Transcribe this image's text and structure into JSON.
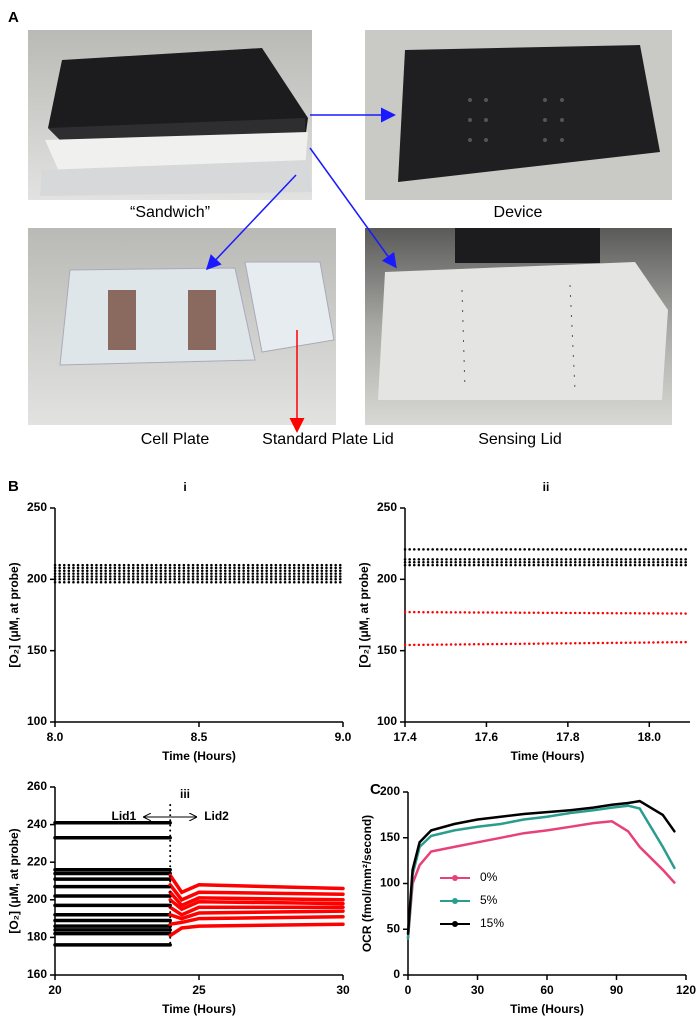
{
  "panels": {
    "a": "A",
    "b": "B",
    "c": "C"
  },
  "captions": [
    "“Sandwich”",
    "Device",
    "Cell Plate",
    "Standard Plate Lid",
    "Sensing Lid"
  ],
  "chart_data": [
    {
      "type": "line",
      "title": "i",
      "line_style": "dotted",
      "x_label": "Time (Hours)",
      "y_label": "[O₂] (μM, at probe)",
      "x": [
        8,
        9
      ],
      "series": [
        {
          "color": "#000000",
          "values": [
            198,
            198
          ]
        },
        {
          "color": "#000000",
          "values": [
            200,
            200
          ]
        },
        {
          "color": "#000000",
          "values": [
            202,
            202
          ]
        },
        {
          "color": "#000000",
          "values": [
            204,
            204
          ]
        },
        {
          "color": "#000000",
          "values": [
            206,
            206
          ]
        },
        {
          "color": "#000000",
          "values": [
            208,
            208
          ]
        },
        {
          "color": "#000000",
          "values": [
            210,
            210
          ]
        }
      ],
      "xlim": [
        8,
        9
      ],
      "xticks": [
        {
          "value": 8,
          "label": "8.0"
        },
        8.5,
        {
          "value": 9,
          "label": "9.0"
        }
      ],
      "ylim": [
        100,
        250
      ],
      "yticks": [
        100,
        150,
        200,
        250
      ]
    },
    {
      "type": "line",
      "title": "ii",
      "line_style": "dotted",
      "x_label": "Time (Hours)",
      "y_label": "[O₂] (μM, at probe)",
      "x": [
        17.4,
        18.1
      ],
      "series": [
        {
          "color": "#000000",
          "values": [
            221,
            221
          ]
        },
        {
          "color": "#000000",
          "values": [
            214,
            214
          ]
        },
        {
          "color": "#000000",
          "values": [
            212,
            212
          ]
        },
        {
          "color": "#000000",
          "values": [
            210,
            210
          ]
        },
        {
          "color": "#ff0000",
          "values": [
            177,
            176
          ]
        },
        {
          "color": "#ff0000",
          "values": [
            154,
            156
          ]
        }
      ],
      "xlim": [
        17.4,
        18.1
      ],
      "xticks": [
        17.4,
        17.6,
        17.8,
        {
          "value": 18,
          "label": "18.0"
        }
      ],
      "ylim": [
        100,
        250
      ],
      "yticks": [
        100,
        150,
        200,
        250
      ]
    },
    {
      "type": "line",
      "title": "iii",
      "line_style": "solid",
      "x_label": "Time (Hours)",
      "y_label": "[O₂] (μM, at probe)",
      "annotations": [
        {
          "text": "Lid1",
          "color": "#000000"
        },
        {
          "text": "Lid2",
          "color": "#ff0000"
        }
      ],
      "x": [
        20,
        24,
        24.4,
        25,
        30
      ],
      "series": [
        {
          "color": "#000000",
          "values": [
            241,
            241,
            null,
            null,
            null
          ]
        },
        {
          "color": "#000000",
          "values": [
            233,
            233,
            null,
            null,
            null
          ]
        },
        {
          "color": "#000000",
          "values": [
            216,
            216,
            null,
            null,
            null
          ]
        },
        {
          "color": "#000000",
          "values": [
            214,
            214,
            null,
            null,
            null
          ]
        },
        {
          "color": "#000000",
          "values": [
            211,
            211,
            null,
            null,
            null
          ]
        },
        {
          "color": "#000000",
          "values": [
            207,
            207,
            null,
            null,
            null
          ]
        },
        {
          "color": "#000000",
          "values": [
            202,
            202,
            null,
            null,
            null
          ]
        },
        {
          "color": "#000000",
          "values": [
            197,
            197,
            null,
            null,
            null
          ]
        },
        {
          "color": "#000000",
          "values": [
            192,
            192,
            null,
            null,
            null
          ]
        },
        {
          "color": "#000000",
          "values": [
            189,
            189,
            null,
            null,
            null
          ]
        },
        {
          "color": "#000000",
          "values": [
            186,
            186,
            null,
            null,
            null
          ]
        },
        {
          "color": "#000000",
          "values": [
            184,
            184,
            null,
            null,
            null
          ]
        },
        {
          "color": "#000000",
          "values": [
            182,
            182,
            null,
            null,
            null
          ]
        },
        {
          "color": "#000000",
          "values": [
            176,
            176,
            null,
            null,
            null
          ]
        },
        {
          "color": "#ff0000",
          "values": [
            null,
            213,
            204,
            208,
            206
          ]
        },
        {
          "color": "#ff0000",
          "values": [
            null,
            208,
            200,
            204,
            203
          ]
        },
        {
          "color": "#ff0000",
          "values": [
            null,
            204,
            197,
            201,
            200
          ]
        },
        {
          "color": "#ff0000",
          "values": [
            null,
            200,
            195,
            199,
            198
          ]
        },
        {
          "color": "#ff0000",
          "values": [
            null,
            196,
            192,
            196,
            196
          ]
        },
        {
          "color": "#ff0000",
          "values": [
            null,
            192,
            190,
            193,
            194
          ]
        },
        {
          "color": "#ff0000",
          "values": [
            null,
            187,
            188,
            190,
            191
          ]
        },
        {
          "color": "#ff0000",
          "values": [
            null,
            181,
            185,
            186,
            187
          ]
        }
      ],
      "xlim": [
        20,
        30
      ],
      "xticks": [
        20,
        25,
        30
      ],
      "ylim": [
        160,
        260
      ],
      "yticks": [
        160,
        180,
        200,
        220,
        240,
        260
      ]
    },
    {
      "type": "line",
      "line_style": "solid",
      "x_label": "Time (Hours)",
      "y_label": "OCR (fmol/mm²/second)",
      "x": [
        0,
        2,
        5,
        10,
        20,
        30,
        40,
        50,
        60,
        70,
        80,
        88,
        95,
        100,
        110,
        115
      ],
      "series": [
        {
          "name": "0%",
          "color": "#e8417a",
          "values": [
            40,
            100,
            120,
            135,
            140,
            145,
            150,
            155,
            158,
            162,
            166,
            168,
            157,
            140,
            115,
            101
          ]
        },
        {
          "name": "5%",
          "color": "#2a9d8f",
          "values": [
            40,
            110,
            140,
            152,
            158,
            162,
            165,
            170,
            173,
            177,
            180,
            183,
            185,
            182,
            140,
            117
          ]
        },
        {
          "name": "15%",
          "color": "#000000",
          "values": [
            45,
            115,
            145,
            158,
            165,
            170,
            173,
            176,
            178,
            180,
            183,
            186,
            188,
            190,
            175,
            157
          ]
        }
      ],
      "xlim": [
        0,
        120
      ],
      "xticks": [
        0,
        30,
        60,
        90,
        120
      ],
      "ylim": [
        0,
        200
      ],
      "yticks": [
        0,
        50,
        100,
        150,
        200
      ]
    }
  ]
}
